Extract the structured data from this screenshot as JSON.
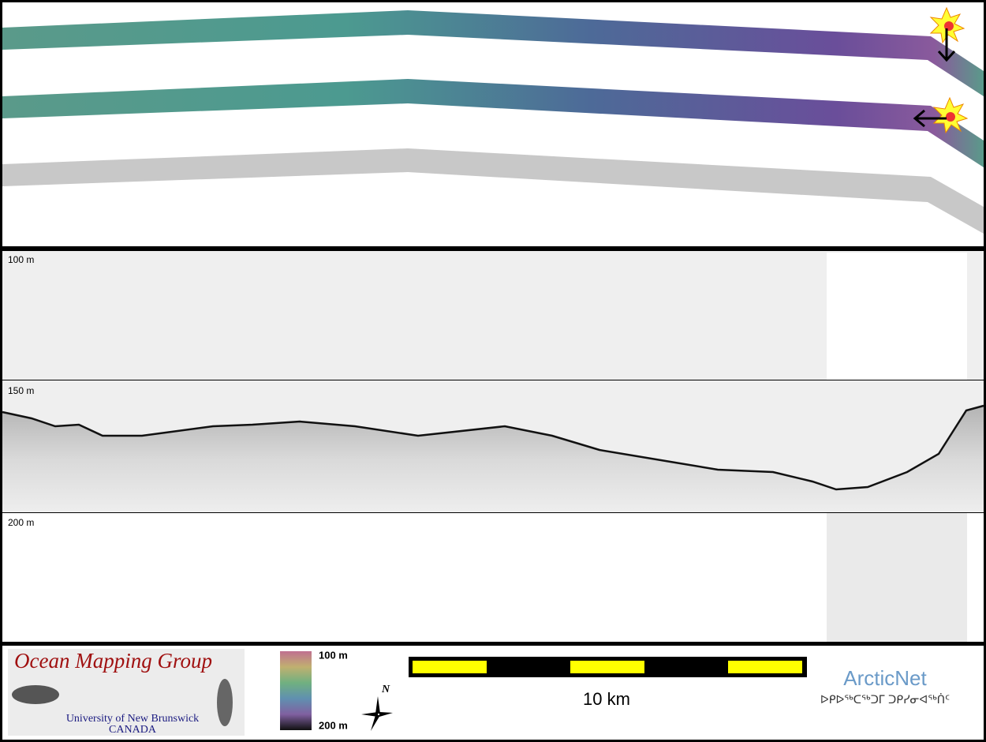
{
  "profile": {
    "depth_labels": [
      "100 m",
      "150 m",
      "200 m"
    ]
  },
  "logo": {
    "title": "Ocean Mapping Group",
    "university": "University of New Brunswick",
    "country": "CANADA"
  },
  "colorbar": {
    "top_label": "100 m",
    "bottom_label": "200 m"
  },
  "compass": {
    "label": "N"
  },
  "scale_bar": {
    "label": "10 km"
  },
  "partner": {
    "name": "ArcticNet",
    "name_inuktitut": "ᐅᑭᐅᖅᑕᖅᑐᒥ ᑐᑭᓯᓂᐊᖅᑏᑦ"
  }
}
